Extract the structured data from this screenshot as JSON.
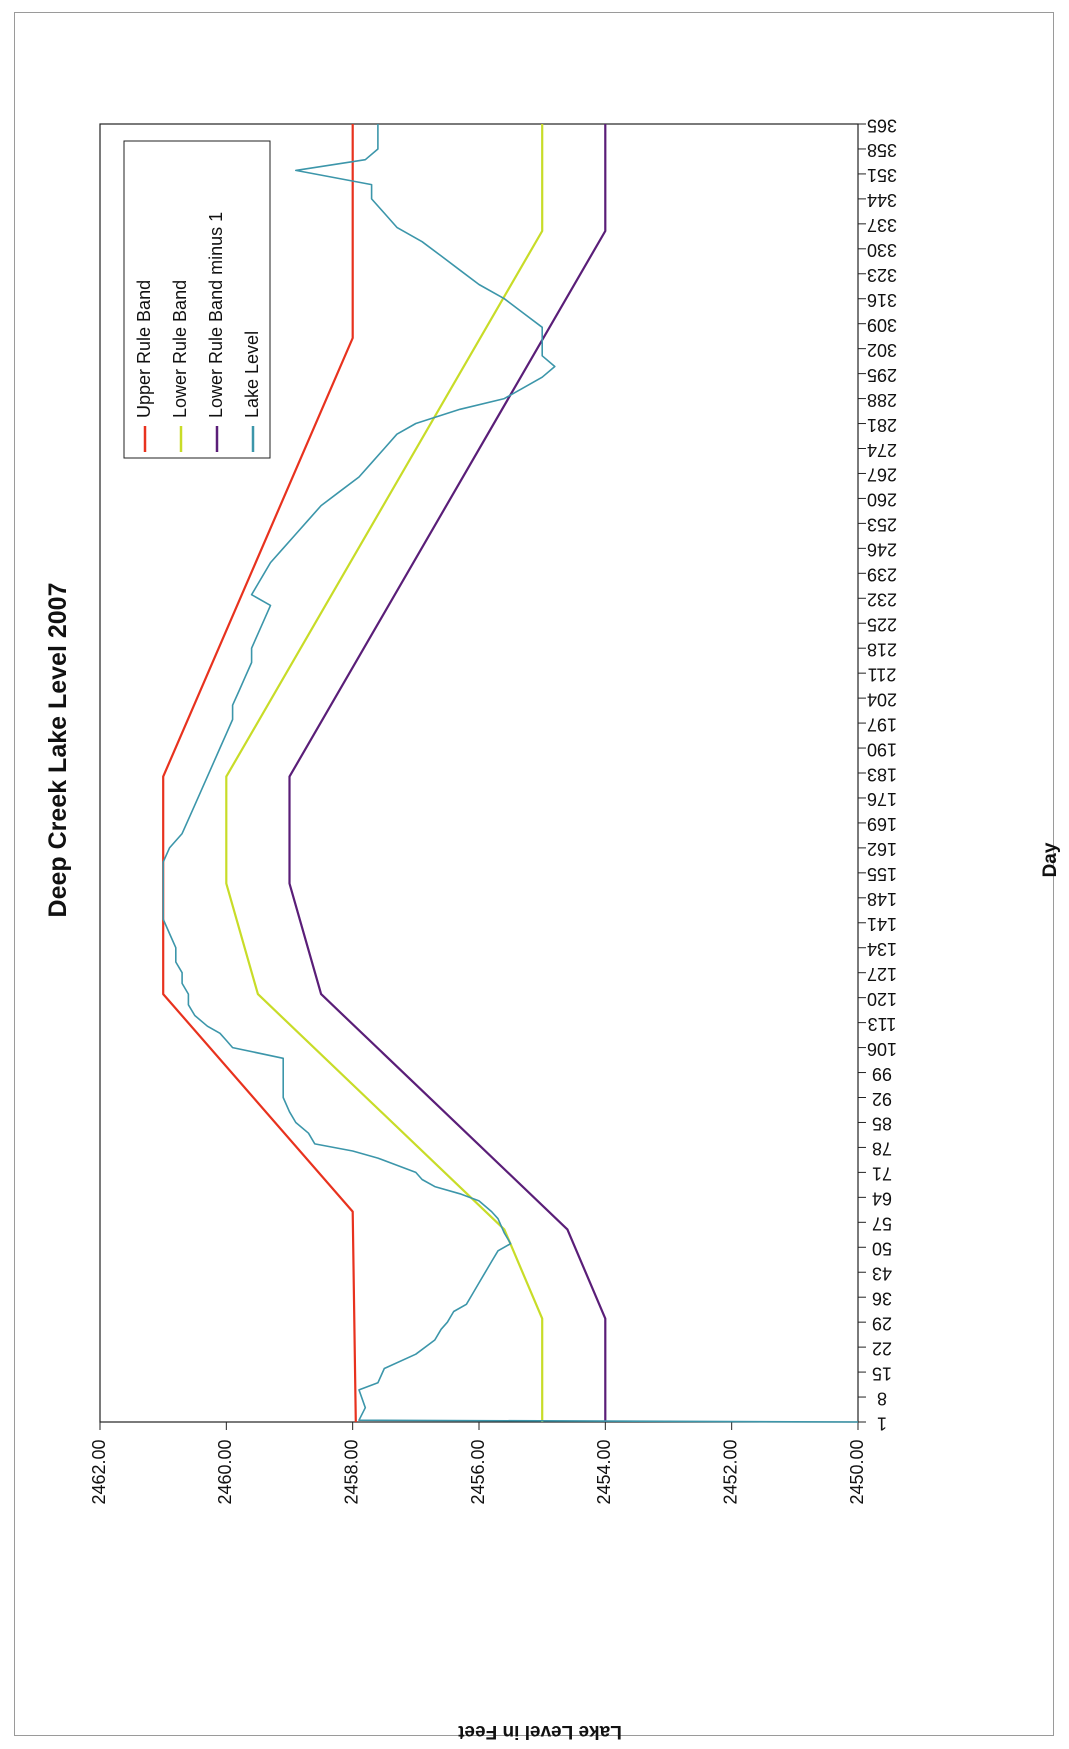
{
  "chart_data": {
    "type": "line",
    "orientation": "rotated-90-clockwise",
    "title": "Deep Creek Lake Level 2007",
    "xlabel": "Day",
    "ylabel": "Lake Level in Feet",
    "xlim": [
      1,
      365
    ],
    "ylim": [
      2450,
      2462
    ],
    "x_ticks": [
      1,
      8,
      15,
      22,
      29,
      36,
      43,
      50,
      57,
      64,
      71,
      78,
      85,
      92,
      99,
      106,
      113,
      120,
      127,
      134,
      141,
      148,
      155,
      162,
      169,
      176,
      183,
      190,
      197,
      204,
      211,
      218,
      225,
      232,
      239,
      246,
      253,
      260,
      267,
      274,
      281,
      288,
      295,
      302,
      309,
      316,
      323,
      330,
      337,
      344,
      351,
      358,
      365
    ],
    "y_ticks": [
      "2450.00",
      "2452.00",
      "2454.00",
      "2456.00",
      "2458.00",
      "2460.00",
      "2462.00"
    ],
    "y_tick_values": [
      2450,
      2452,
      2454,
      2456,
      2458,
      2460,
      2462
    ],
    "grid": false,
    "legend_position": "top-right",
    "series": [
      {
        "name": "Upper Rule Band",
        "color": "#e8321e",
        "points": [
          [
            1,
            2457.95
          ],
          [
            60,
            2458.0
          ],
          [
            121,
            2461.0
          ],
          [
            182,
            2461.0
          ],
          [
            305,
            2458.0
          ],
          [
            365,
            2458.0
          ]
        ]
      },
      {
        "name": "Lower Rule Band",
        "color": "#c8dc28",
        "points": [
          [
            1,
            2455.0
          ],
          [
            30,
            2455.0
          ],
          [
            55,
            2455.6
          ],
          [
            121,
            2459.5
          ],
          [
            152,
            2460.0
          ],
          [
            182,
            2460.0
          ],
          [
            335,
            2455.0
          ],
          [
            365,
            2455.0
          ]
        ]
      },
      {
        "name": "Lower Rule Band minus 1",
        "color": "#5a1e78",
        "points": [
          [
            1,
            2454.0
          ],
          [
            30,
            2454.0
          ],
          [
            55,
            2454.6
          ],
          [
            121,
            2458.5
          ],
          [
            152,
            2459.0
          ],
          [
            182,
            2459.0
          ],
          [
            335,
            2454.0
          ],
          [
            365,
            2454.0
          ]
        ]
      },
      {
        "name": "Lake Level",
        "color": "#3c96aa",
        "points": [
          [
            1,
            2450.0
          ],
          [
            1.5,
            2457.9
          ],
          [
            5,
            2457.8
          ],
          [
            10,
            2457.9
          ],
          [
            12,
            2457.6
          ],
          [
            16,
            2457.5
          ],
          [
            20,
            2457.0
          ],
          [
            24,
            2456.7
          ],
          [
            27,
            2456.6
          ],
          [
            29,
            2456.5
          ],
          [
            32,
            2456.4
          ],
          [
            34,
            2456.2
          ],
          [
            37,
            2456.1
          ],
          [
            40,
            2456.0
          ],
          [
            43,
            2455.9
          ],
          [
            46,
            2455.8
          ],
          [
            49,
            2455.7
          ],
          [
            51,
            2455.5
          ],
          [
            54,
            2455.6
          ],
          [
            58,
            2455.7
          ],
          [
            60,
            2455.8
          ],
          [
            63,
            2456.0
          ],
          [
            65,
            2456.3
          ],
          [
            67,
            2456.7
          ],
          [
            69,
            2456.9
          ],
          [
            71,
            2457.0
          ],
          [
            73,
            2457.3
          ],
          [
            75,
            2457.6
          ],
          [
            77,
            2458.0
          ],
          [
            79,
            2458.6
          ],
          [
            82,
            2458.7
          ],
          [
            85,
            2458.9
          ],
          [
            88,
            2459.0
          ],
          [
            92,
            2459.1
          ],
          [
            96,
            2459.1
          ],
          [
            100,
            2459.1
          ],
          [
            103,
            2459.1
          ],
          [
            106,
            2459.9
          ],
          [
            108,
            2460.0
          ],
          [
            110,
            2460.1
          ],
          [
            112,
            2460.3
          ],
          [
            115,
            2460.5
          ],
          [
            118,
            2460.6
          ],
          [
            121,
            2460.6
          ],
          [
            124,
            2460.7
          ],
          [
            127,
            2460.7
          ],
          [
            130,
            2460.8
          ],
          [
            134,
            2460.8
          ],
          [
            138,
            2460.9
          ],
          [
            142,
            2461.0
          ],
          [
            146,
            2461.0
          ],
          [
            150,
            2461.0
          ],
          [
            154,
            2461.0
          ],
          [
            158,
            2461.0
          ],
          [
            162,
            2460.9
          ],
          [
            166,
            2460.7
          ],
          [
            170,
            2460.6
          ],
          [
            174,
            2460.5
          ],
          [
            178,
            2460.4
          ],
          [
            182,
            2460.3
          ],
          [
            186,
            2460.2
          ],
          [
            190,
            2460.1
          ],
          [
            194,
            2460.0
          ],
          [
            198,
            2459.9
          ],
          [
            202,
            2459.9
          ],
          [
            206,
            2459.8
          ],
          [
            210,
            2459.7
          ],
          [
            214,
            2459.6
          ],
          [
            218,
            2459.6
          ],
          [
            222,
            2459.5
          ],
          [
            226,
            2459.4
          ],
          [
            230,
            2459.3
          ],
          [
            233,
            2459.6
          ],
          [
            236,
            2459.5
          ],
          [
            239,
            2459.4
          ],
          [
            242,
            2459.3
          ],
          [
            246,
            2459.1
          ],
          [
            250,
            2458.9
          ],
          [
            254,
            2458.7
          ],
          [
            258,
            2458.5
          ],
          [
            262,
            2458.2
          ],
          [
            266,
            2457.9
          ],
          [
            270,
            2457.7
          ],
          [
            274,
            2457.5
          ],
          [
            278,
            2457.3
          ],
          [
            281,
            2457.0
          ],
          [
            285,
            2456.3
          ],
          [
            288,
            2455.6
          ],
          [
            291,
            2455.3
          ],
          [
            294,
            2455.0
          ],
          [
            297,
            2454.8
          ],
          [
            300,
            2455.0
          ],
          [
            304,
            2455.0
          ],
          [
            308,
            2455.0
          ],
          [
            312,
            2455.3
          ],
          [
            316,
            2455.6
          ],
          [
            320,
            2456.0
          ],
          [
            324,
            2456.3
          ],
          [
            328,
            2456.6
          ],
          [
            332,
            2456.9
          ],
          [
            336,
            2457.3
          ],
          [
            340,
            2457.5
          ],
          [
            344,
            2457.7
          ],
          [
            348,
            2457.7
          ],
          [
            352,
            2458.9
          ],
          [
            355,
            2457.8
          ],
          [
            358,
            2457.6
          ],
          [
            361,
            2457.6
          ],
          [
            365,
            2457.6
          ]
        ]
      }
    ]
  }
}
